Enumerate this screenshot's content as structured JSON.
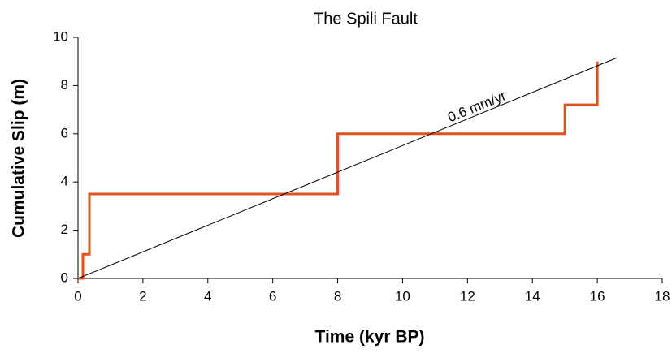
{
  "chart_data": {
    "type": "line",
    "title": "The Spili Fault",
    "xlabel": "Time (kyr BP)",
    "ylabel": "Cumulative Slip (m)",
    "xlim": [
      0,
      18
    ],
    "xticks": [
      0,
      2,
      4,
      6,
      8,
      10,
      12,
      14,
      16,
      18
    ],
    "ylim": [
      0,
      10
    ],
    "yticks": [
      0,
      2,
      4,
      6,
      8,
      10
    ],
    "series": [
      {
        "color": "#e2501c",
        "width": 3,
        "x": [
          0,
          0.15,
          0.15,
          0.35,
          0.35,
          8,
          8,
          15,
          15,
          16,
          16
        ],
        "values": [
          0,
          0,
          1,
          1,
          3.5,
          3.5,
          6,
          6,
          7.2,
          7.2,
          9
        ]
      },
      {
        "color": "#000000",
        "width": 1,
        "x": [
          0,
          16.6
        ],
        "values": [
          0,
          9.15
        ]
      }
    ],
    "annotations": [
      {
        "text": "0.6 mm/yr",
        "x": 12.3,
        "y": 7.1
      }
    ]
  }
}
